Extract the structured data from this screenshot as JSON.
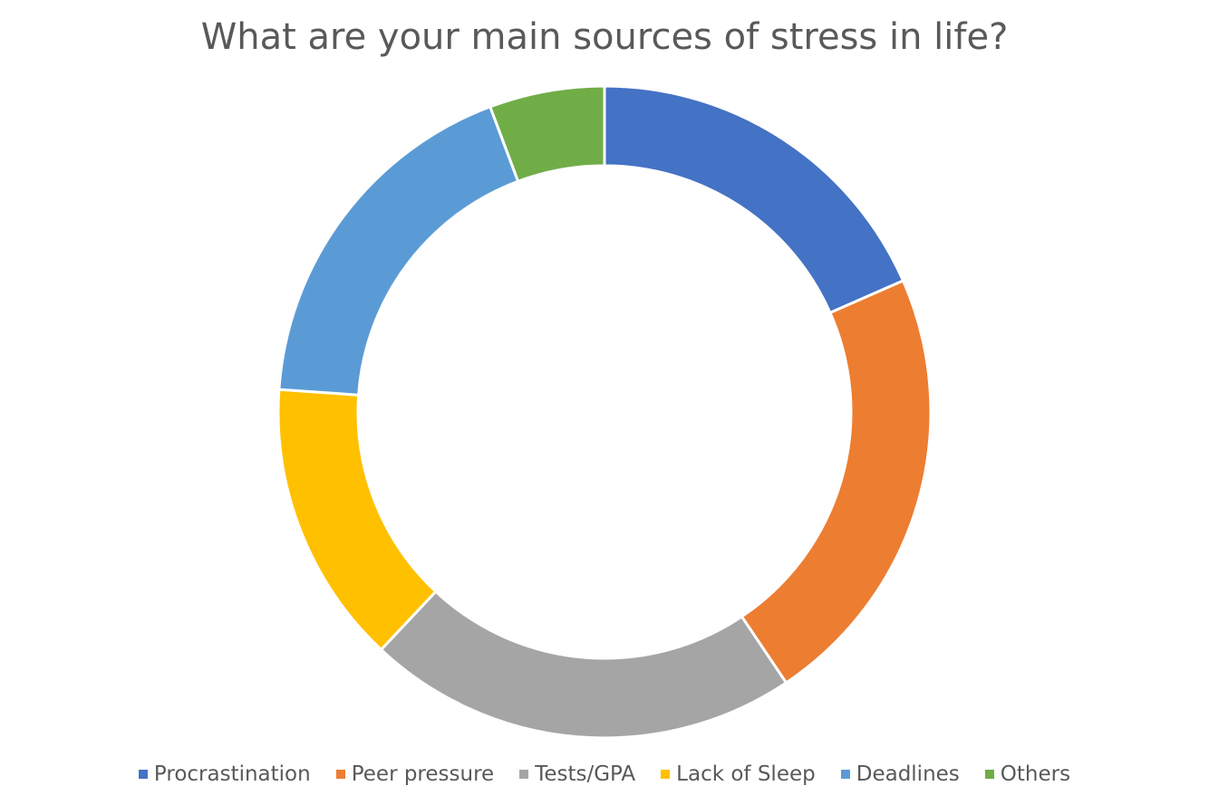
{
  "chart_data": {
    "type": "pie",
    "subtype": "donut",
    "title": "What are your main sources of stress in life?",
    "categories": [
      "Procrastination",
      "Peer pressure",
      "Tests/GPA",
      "Lack of Sleep",
      "Deadlines",
      "Others"
    ],
    "values": [
      18.4,
      22.2,
      21.4,
      14.1,
      18.2,
      5.7
    ],
    "colors": [
      "#4472C4",
      "#ED7D31",
      "#A5A5A5",
      "#FFC000",
      "#5B9BD5",
      "#70AD47"
    ],
    "legend_position": "bottom",
    "start_angle_deg": 0,
    "direction": "clockwise"
  }
}
